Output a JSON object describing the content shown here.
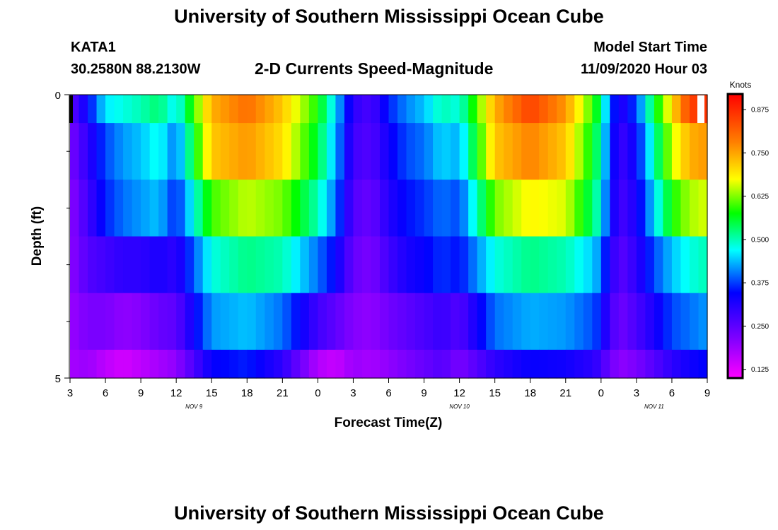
{
  "header": {
    "title": "University of Southern Mississippi Ocean Cube",
    "station_id": "KATA1",
    "coordinates": "30.2580N 88.2130W",
    "plot_title": "2-D Currents Speed-Magnitude",
    "model_label": "Model Start Time",
    "model_start": "11/09/2020 Hour 03"
  },
  "footer": {
    "title": "University of Southern Mississippi Ocean Cube"
  },
  "chart_data": {
    "type": "heatmap",
    "title": "2-D Currents Speed-Magnitude",
    "xlabel": "Forecast Time(Z)",
    "ylabel": "Depth (ft)",
    "x_ticks": [
      "3",
      "6",
      "9",
      "12",
      "15",
      "18",
      "21",
      "0",
      "3",
      "6",
      "9",
      "12",
      "15",
      "18",
      "21",
      "0",
      "3",
      "6",
      "9"
    ],
    "x_range_hours": [
      0,
      54
    ],
    "date_labels": [
      {
        "text": "NOV  9",
        "hour": 10.5
      },
      {
        "text": "NOV  10",
        "hour": 33
      },
      {
        "text": "NOV  11",
        "hour": 49.5
      }
    ],
    "y_range_ft": [
      0,
      5
    ],
    "y_labeled_ticks": [
      "0",
      "5"
    ],
    "y_minor_ticks_ft": [
      1,
      2,
      3,
      4
    ],
    "layer_bounds_ft": [
      0,
      0.5,
      1.5,
      2.5,
      3.5,
      4.5,
      5
    ],
    "time_nodes_hours": [
      0,
      1.5,
      3,
      4.5,
      6,
      7.5,
      9,
      12,
      15,
      18,
      21,
      22.5,
      24,
      25.5,
      27,
      28.5,
      30,
      31.5,
      33,
      36,
      39,
      42,
      44.5,
      46.5,
      48,
      49.5,
      51,
      52.5,
      54
    ],
    "speed_knots": [
      [
        0.25,
        0.34,
        0.46,
        0.48,
        0.5,
        0.53,
        0.46,
        0.74,
        0.8,
        0.72,
        0.58,
        0.45,
        0.3,
        0.27,
        0.36,
        0.41,
        0.44,
        0.5,
        0.48,
        0.74,
        0.85,
        0.76,
        0.58,
        0.3,
        0.38,
        0.55,
        0.7,
        0.85,
        0.87
      ],
      [
        0.22,
        0.3,
        0.38,
        0.42,
        0.44,
        0.48,
        0.4,
        0.72,
        0.76,
        0.7,
        0.55,
        0.43,
        0.28,
        0.26,
        0.33,
        0.38,
        0.4,
        0.45,
        0.43,
        0.72,
        0.78,
        0.72,
        0.55,
        0.28,
        0.34,
        0.5,
        0.65,
        0.74,
        0.76
      ],
      [
        0.2,
        0.28,
        0.36,
        0.4,
        0.42,
        0.44,
        0.36,
        0.6,
        0.65,
        0.62,
        0.5,
        0.4,
        0.26,
        0.24,
        0.31,
        0.35,
        0.37,
        0.4,
        0.38,
        0.62,
        0.68,
        0.66,
        0.52,
        0.27,
        0.32,
        0.45,
        0.58,
        0.64,
        0.66
      ],
      [
        0.2,
        0.26,
        0.28,
        0.3,
        0.3,
        0.32,
        0.3,
        0.48,
        0.52,
        0.5,
        0.4,
        0.34,
        0.24,
        0.22,
        0.28,
        0.32,
        0.34,
        0.37,
        0.35,
        0.48,
        0.52,
        0.5,
        0.44,
        0.25,
        0.3,
        0.38,
        0.44,
        0.48,
        0.5
      ],
      [
        0.19,
        0.22,
        0.22,
        0.2,
        0.21,
        0.24,
        0.25,
        0.42,
        0.44,
        0.4,
        0.28,
        0.25,
        0.21,
        0.2,
        0.23,
        0.25,
        0.27,
        0.29,
        0.26,
        0.4,
        0.43,
        0.42,
        0.38,
        0.23,
        0.27,
        0.32,
        0.38,
        0.4,
        0.42
      ],
      [
        0.18,
        0.19,
        0.16,
        0.14,
        0.16,
        0.18,
        0.2,
        0.34,
        0.36,
        0.3,
        0.17,
        0.15,
        0.19,
        0.18,
        0.2,
        0.22,
        0.24,
        0.26,
        0.22,
        0.3,
        0.34,
        0.33,
        0.3,
        0.2,
        0.22,
        0.26,
        0.3,
        0.33,
        0.35
      ]
    ],
    "colorbar": {
      "title": "Knots",
      "min": 0.1,
      "max": 0.92,
      "tick_labels": [
        "0.125",
        "0.250",
        "0.375",
        "0.500",
        "0.625",
        "0.750",
        "0.875"
      ],
      "tick_values": [
        0.125,
        0.25,
        0.375,
        0.5,
        0.625,
        0.75,
        0.875
      ]
    }
  }
}
